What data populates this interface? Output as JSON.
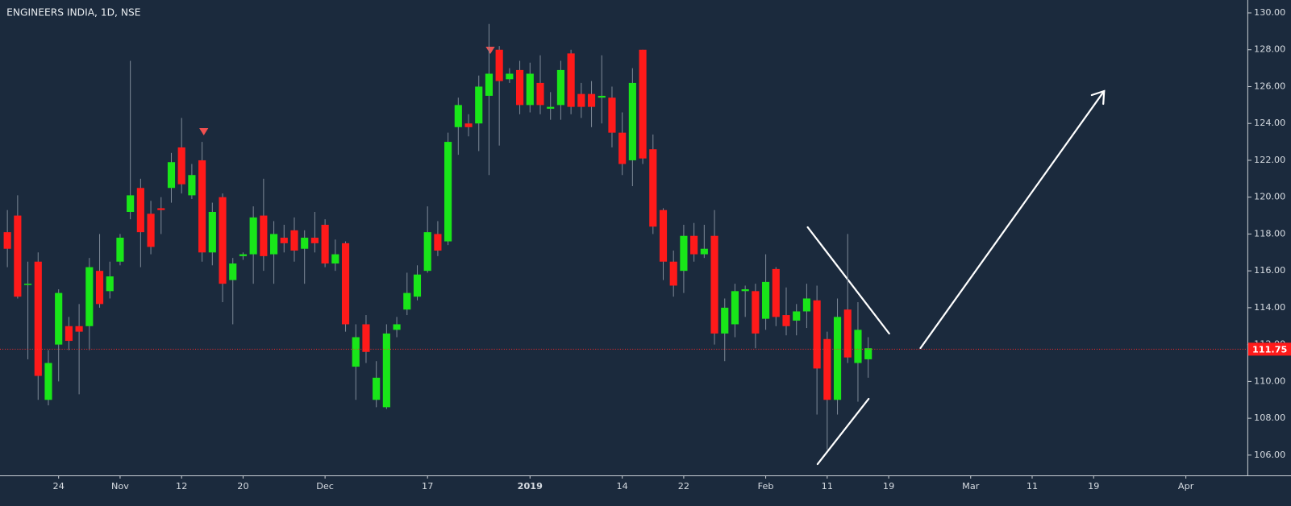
{
  "chart_data": {
    "type": "candlestick",
    "title": "ENGINEERS INDIA, 1D, NSE",
    "up_color": "#19e619",
    "down_color": "#ff1a1a",
    "wick_color": "#7c8896",
    "open": [
      118.1,
      119,
      115.3,
      116.5,
      109,
      112,
      113,
      113,
      113,
      116,
      114.9,
      116.5,
      119.2,
      120.5,
      119.1,
      119.4,
      120.5,
      122.7,
      120.1,
      122,
      117,
      120,
      115.5,
      116.8,
      116.9,
      119,
      116.9,
      117.8,
      118.2,
      117.2,
      117.8,
      118.5,
      116.4,
      117.5,
      110.8,
      113.1,
      109,
      108.6,
      112.8,
      113.9,
      114.6,
      116,
      118,
      117.6,
      123.8,
      124,
      124,
      125.5,
      128,
      126.4,
      126.9,
      125,
      126.2,
      124.8,
      125,
      127.8,
      125.6,
      125.6,
      125.4,
      125.4,
      123.5,
      122,
      128,
      122.6,
      119.3,
      116.5,
      116,
      117.9,
      116.9,
      117.9,
      112.6,
      113.1,
      114.9,
      114.9,
      113.4,
      116.1,
      113.6,
      113.3,
      113.8,
      114.4,
      112.3,
      109,
      113.9,
      111,
      111.2
    ],
    "high": [
      119.3,
      120.1,
      116.5,
      117,
      111.7,
      115,
      113.5,
      114.2,
      116.7,
      118,
      116.5,
      118,
      127.4,
      121,
      119.8,
      120,
      122.4,
      124.3,
      121.8,
      123,
      119.7,
      120.2,
      116.7,
      117,
      119.5,
      121,
      118.7,
      118.5,
      118.9,
      118.2,
      119.2,
      118.8,
      117.7,
      117.6,
      113.1,
      113.6,
      111.1,
      113.1,
      113.5,
      115.9,
      116.3,
      119.5,
      118.7,
      123.5,
      125.4,
      124.5,
      126.6,
      129.4,
      128.2,
      127,
      127.4,
      127.3,
      127.7,
      125.7,
      127.4,
      128,
      126.2,
      126.3,
      127.7,
      126,
      124.6,
      127,
      128,
      123.4,
      119.4,
      117.1,
      118.5,
      118.6,
      118.5,
      119.3,
      114.5,
      115.3,
      115.2,
      115.3,
      116.9,
      116.2,
      115.1,
      114.2,
      115.3,
      115.2,
      112.7,
      114.5,
      118,
      114.3,
      112.4
    ],
    "low": [
      116.2,
      114.5,
      111.2,
      109,
      108.7,
      110,
      111.7,
      109.3,
      111.7,
      114,
      114.5,
      116.3,
      118.8,
      116.2,
      116.9,
      118,
      119.7,
      120.2,
      119.9,
      116.5,
      116.3,
      114.3,
      113.1,
      116.6,
      115.3,
      116,
      115.3,
      117,
      116.5,
      115.3,
      117,
      116.2,
      116,
      112.7,
      109,
      111,
      108.6,
      108.5,
      112.4,
      113.6,
      114.4,
      115.9,
      116.8,
      117.4,
      122.3,
      123.3,
      122.5,
      121.2,
      122.8,
      126.2,
      124.5,
      124.6,
      124.5,
      124.2,
      124.2,
      124.5,
      124.3,
      123.8,
      124,
      122.7,
      121.2,
      120.6,
      121.8,
      118,
      115.5,
      114.6,
      114.8,
      116.5,
      116.7,
      112,
      111.1,
      112.4,
      113.5,
      111.8,
      112.8,
      113,
      112.5,
      112.5,
      112.9,
      108.2,
      106.3,
      108.2,
      111,
      108.9,
      110.2
    ],
    "close": [
      117.2,
      114.6,
      115.3,
      110.3,
      111,
      114.8,
      112.2,
      112.7,
      116.2,
      114.2,
      115.7,
      117.8,
      120.1,
      118.1,
      117.3,
      119.3,
      121.9,
      120.7,
      121.2,
      117,
      119.2,
      115.3,
      116.4,
      116.9,
      118.9,
      116.8,
      118,
      117.5,
      117.1,
      117.8,
      117.5,
      116.4,
      116.9,
      113.1,
      112.4,
      111.6,
      110.2,
      112.6,
      113.1,
      114.8,
      115.8,
      118.1,
      117.1,
      123,
      125,
      123.8,
      126,
      126.7,
      126.3,
      126.7,
      125,
      126.7,
      125,
      124.9,
      126.9,
      124.9,
      124.9,
      124.9,
      125.5,
      123.5,
      121.8,
      126.2,
      122.1,
      118.4,
      116.5,
      115.2,
      117.9,
      116.9,
      117.2,
      112.6,
      114,
      114.9,
      115,
      112.6,
      115.4,
      113.5,
      113,
      113.8,
      114.5,
      110.7,
      109,
      113.5,
      111.3,
      112.8,
      111.8
    ],
    "last_price": 111.75,
    "ylim": [
      104.9,
      130.7
    ],
    "yticks": [
      {
        "value": 106,
        "label": "106.00"
      },
      {
        "value": 108,
        "label": "108.00"
      },
      {
        "value": 110,
        "label": "110.00"
      },
      {
        "value": 112,
        "label": "112.00"
      },
      {
        "value": 114,
        "label": "114.00"
      },
      {
        "value": 116,
        "label": "116.00"
      },
      {
        "value": 118,
        "label": "118.00"
      },
      {
        "value": 120,
        "label": "120.00"
      },
      {
        "value": 122,
        "label": "122.00"
      },
      {
        "value": 124,
        "label": "124.00"
      },
      {
        "value": 126,
        "label": "126.00"
      },
      {
        "value": 128,
        "label": "128.00"
      },
      {
        "value": 130,
        "label": "130.00"
      }
    ],
    "xlim": [
      -0.72,
      121
    ],
    "xticks": [
      {
        "value": 5,
        "label": "24"
      },
      {
        "value": 11,
        "label": "Nov"
      },
      {
        "value": 17,
        "label": "12"
      },
      {
        "value": 23,
        "label": "20"
      },
      {
        "value": 31,
        "label": "Dec"
      },
      {
        "value": 41,
        "label": "17"
      },
      {
        "value": 51,
        "label": "2019"
      },
      {
        "value": 60,
        "label": "14"
      },
      {
        "value": 66,
        "label": "22"
      },
      {
        "value": 74,
        "label": "Feb"
      },
      {
        "value": 80,
        "label": "11"
      },
      {
        "value": 86,
        "label": "19"
      },
      {
        "value": 94,
        "label": "Mar"
      },
      {
        "value": 100,
        "label": "11"
      },
      {
        "value": 106,
        "label": "19"
      },
      {
        "value": 115,
        "label": "Apr"
      }
    ]
  }
}
